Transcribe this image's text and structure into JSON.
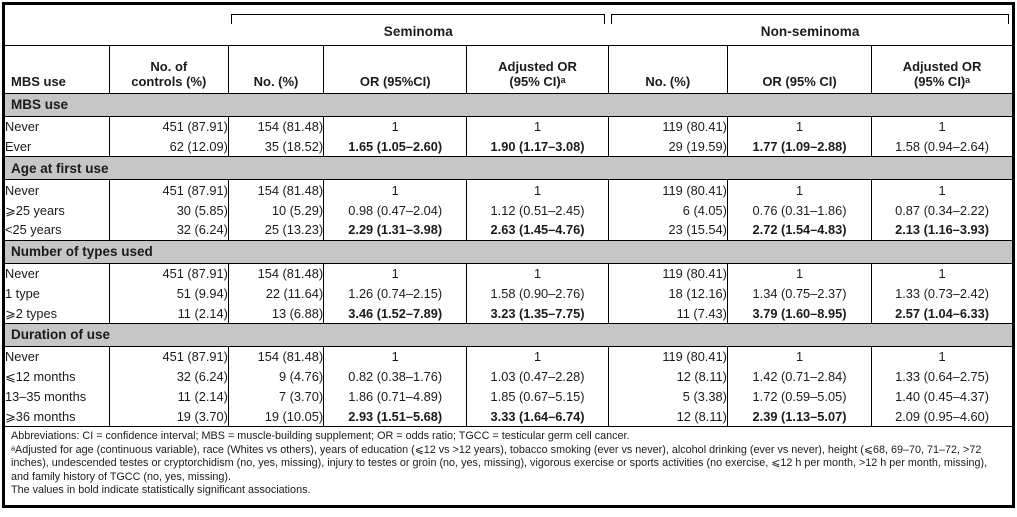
{
  "header": {
    "groups": [
      "Seminoma",
      "Non-seminoma"
    ],
    "columns": [
      "MBS use",
      "No. of\ncontrols (%)",
      "No. (%)",
      "OR (95%CI)",
      "Adjusted OR\n(95% CI)ᵃ",
      "No. (%)",
      "OR (95% CI)",
      "Adjusted OR\n(95% CI)ᵃ"
    ]
  },
  "sections": [
    {
      "title": "MBS use",
      "rows": [
        {
          "label": "Never",
          "controls": "451 (87.91)",
          "sem_no": "154 (81.48)",
          "sem_or": "1",
          "sem_aor": "1",
          "ns_no": "119 (80.41)",
          "ns_or": "1",
          "ns_aor": "1"
        },
        {
          "label": "Ever",
          "controls": "62 (12.09)",
          "sem_no": "35 (18.52)",
          "sem_or": {
            "t": "1.65 (1.05–2.60)",
            "b": true
          },
          "sem_aor": {
            "t": "1.90 (1.17–3.08)",
            "b": true
          },
          "ns_no": "29 (19.59)",
          "ns_or": {
            "t": "1.77 (1.09–2.88)",
            "b": true
          },
          "ns_aor": "1.58 (0.94–2.64)"
        }
      ]
    },
    {
      "title": "Age at first use",
      "rows": [
        {
          "label": "Never",
          "controls": "451 (87.91)",
          "sem_no": "154 (81.48)",
          "sem_or": "1",
          "sem_aor": "1",
          "ns_no": "119 (80.41)",
          "ns_or": "1",
          "ns_aor": "1"
        },
        {
          "label": "⩾25 years",
          "controls": "30 (5.85)",
          "sem_no": "10 (5.29)",
          "sem_or": "0.98 (0.47–2.04)",
          "sem_aor": "1.12 (0.51–2.45)",
          "ns_no": "6 (4.05)",
          "ns_or": "0.76 (0.31–1.86)",
          "ns_aor": "0.87 (0.34–2.22)"
        },
        {
          "label": "<25 years",
          "controls": "32 (6.24)",
          "sem_no": "25 (13.23)",
          "sem_or": {
            "t": "2.29 (1.31–3.98)",
            "b": true
          },
          "sem_aor": {
            "t": "2.63 (1.45–4.76)",
            "b": true
          },
          "ns_no": "23 (15.54)",
          "ns_or": {
            "t": "2.72 (1.54–4.83)",
            "b": true
          },
          "ns_aor": {
            "t": "2.13 (1.16–3.93)",
            "b": true
          }
        }
      ]
    },
    {
      "title": "Number of types used",
      "rows": [
        {
          "label": "Never",
          "controls": "451 (87.91)",
          "sem_no": "154 (81.48)",
          "sem_or": "1",
          "sem_aor": "1",
          "ns_no": "119 (80.41)",
          "ns_or": "1",
          "ns_aor": "1"
        },
        {
          "label": "1 type",
          "controls": "51 (9.94)",
          "sem_no": "22 (11.64)",
          "sem_or": "1.26 (0.74–2.15)",
          "sem_aor": "1.58 (0.90–2.76)",
          "ns_no": "18 (12.16)",
          "ns_or": "1.34 (0.75–2.37)",
          "ns_aor": "1.33 (0.73–2.42)"
        },
        {
          "label": "⩾2 types",
          "controls": "11 (2.14)",
          "sem_no": "13 (6.88)",
          "sem_or": {
            "t": "3.46 (1.52–7.89)",
            "b": true
          },
          "sem_aor": {
            "t": "3.23 (1.35–7.75)",
            "b": true
          },
          "ns_no": "11 (7.43)",
          "ns_or": {
            "t": "3.79 (1.60–8.95)",
            "b": true
          },
          "ns_aor": {
            "t": "2.57 (1.04–6.33)",
            "b": true
          }
        }
      ]
    },
    {
      "title": "Duration of use",
      "rows": [
        {
          "label": "Never",
          "controls": "451 (87.91)",
          "sem_no": "154 (81.48)",
          "sem_or": "1",
          "sem_aor": "1",
          "ns_no": "119 (80.41)",
          "ns_or": "1",
          "ns_aor": "1"
        },
        {
          "label": "⩽12 months",
          "controls": "32 (6.24)",
          "sem_no": "9 (4.76)",
          "sem_or": "0.82 (0.38–1.76)",
          "sem_aor": "1.03 (0.47–2.28)",
          "ns_no": "12 (8.11)",
          "ns_or": "1.42 (0.71–2.84)",
          "ns_aor": "1.33 (0.64–2.75)"
        },
        {
          "label": "13–35 months",
          "controls": "11 (2.14)",
          "sem_no": "7 (3.70)",
          "sem_or": "1.86 (0.71–4.89)",
          "sem_aor": "1.85 (0.67–5.15)",
          "ns_no": "5 (3.38)",
          "ns_or": "1.72 (0.59–5.05)",
          "ns_aor": "1.40 (0.45–4.37)"
        },
        {
          "label": "⩾36 months",
          "controls": "19 (3.70)",
          "sem_no": "19 (10.05)",
          "sem_or": {
            "t": "2.93 (1.51–5.68)",
            "b": true
          },
          "sem_aor": {
            "t": "3.33 (1.64–6.74)",
            "b": true
          },
          "ns_no": "12 (8.11)",
          "ns_or": {
            "t": "2.39 (1.13–5.07)",
            "b": true
          },
          "ns_aor": "2.09 (0.95–4.60)"
        }
      ]
    }
  ],
  "footnotes": {
    "abbreviations": "Abbreviations: CI = confidence interval; MBS = muscle-building supplement; OR = odds ratio; TGCC = testicular germ cell cancer.",
    "adjusted": "ᵃAdjusted for age (continuous variable), race (Whites vs others), years of education (⩽12 vs >12 years), tobacco smoking (ever vs never), alcohol drinking (ever vs never), height (⩽68, 69–70, 71–72, >72 inches), undescended testes or cryptorchidism (no, yes, missing), injury to testes or groin (no, yes, missing), vigorous exercise or sports activities (no exercise, ⩽12 h per month, >12 h per month, missing), and family history of TGCC (no, yes, missing).",
    "bold_note": "The values in bold indicate statistically significant associations."
  },
  "colors": {
    "band_gray": "#c6c6c6",
    "border_black": "#000000"
  }
}
